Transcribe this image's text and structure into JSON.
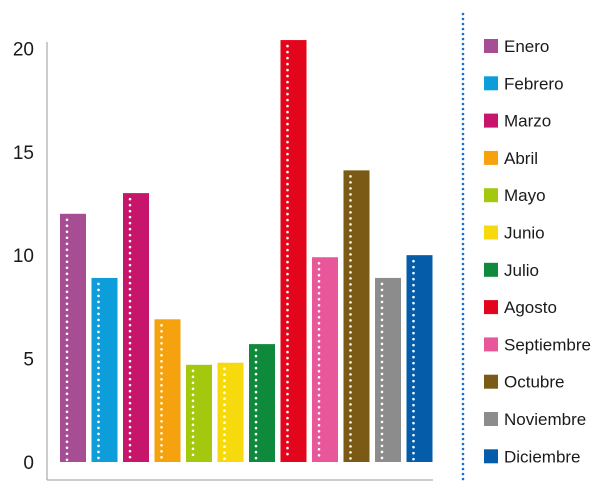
{
  "chart_data": {
    "type": "bar",
    "categories": [
      "Enero",
      "Febrero",
      "Marzo",
      "Abril",
      "Mayo",
      "Junio",
      "Julio",
      "Agosto",
      "Septiembre",
      "Octubre",
      "Noviembre",
      "Diciembre"
    ],
    "values": [
      12,
      8.9,
      13,
      6.9,
      4.7,
      4.8,
      5.7,
      20.4,
      9.9,
      14.1,
      8.9,
      10
    ],
    "colors": [
      "#A64D94",
      "#0D9DDB",
      "#C8156C",
      "#F6A20E",
      "#A3C80E",
      "#F6DA0E",
      "#0F8A3C",
      "#E3051B",
      "#E8579A",
      "#7A5A14",
      "#8C8C8C",
      "#055DAA"
    ],
    "yticks": [
      0,
      5,
      10,
      15,
      20
    ],
    "ylim": [
      0,
      20.5
    ],
    "title": "",
    "xlabel": "",
    "ylabel": "",
    "grid": false,
    "legend_position": "right",
    "legend_separator_color": "#1A6FC9",
    "bar_dot_color": "#ffffff"
  }
}
